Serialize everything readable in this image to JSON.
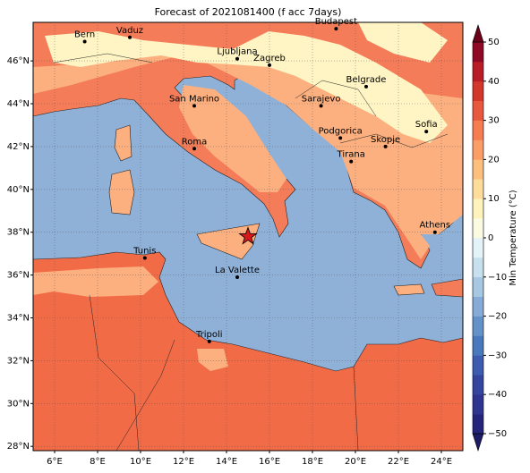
{
  "title": "Forecast of 2021081400 (f acc 7days)",
  "map": {
    "lonlim": [
      5,
      25
    ],
    "latlim": [
      27.8,
      47.8
    ],
    "grid": true,
    "lonticks": [
      {
        "value": 6,
        "label": "6°E"
      },
      {
        "value": 8,
        "label": "8°E"
      },
      {
        "value": 10,
        "label": "10°E"
      },
      {
        "value": 12,
        "label": "12°E"
      },
      {
        "value": 14,
        "label": "14°E"
      },
      {
        "value": 16,
        "label": "16°E"
      },
      {
        "value": 18,
        "label": "18°E"
      },
      {
        "value": 20,
        "label": "20°E"
      },
      {
        "value": 22,
        "label": "22°E"
      },
      {
        "value": 24,
        "label": "24°E"
      }
    ],
    "latticks": [
      {
        "value": 28,
        "label": "28°N"
      },
      {
        "value": 30,
        "label": "30°N"
      },
      {
        "value": 32,
        "label": "32°N"
      },
      {
        "value": 34,
        "label": "34°N"
      },
      {
        "value": 36,
        "label": "36°N"
      },
      {
        "value": 38,
        "label": "38°N"
      },
      {
        "value": 40,
        "label": "40°N"
      },
      {
        "value": 42,
        "label": "42°N"
      },
      {
        "value": 44,
        "label": "44°N"
      },
      {
        "value": 46,
        "label": "46°N"
      }
    ],
    "cities": [
      {
        "name": "Bern",
        "lon": 7.4,
        "lat": 46.9
      },
      {
        "name": "Vaduz",
        "lon": 9.5,
        "lat": 47.1
      },
      {
        "name": "Budapest",
        "lon": 19.1,
        "lat": 47.5
      },
      {
        "name": "Ljubljana",
        "lon": 14.5,
        "lat": 46.1
      },
      {
        "name": "Zagreb",
        "lon": 16.0,
        "lat": 45.8
      },
      {
        "name": "Belgrade",
        "lon": 20.5,
        "lat": 44.8
      },
      {
        "name": "Sarajevo",
        "lon": 18.4,
        "lat": 43.9
      },
      {
        "name": "San Marino",
        "lon": 12.5,
        "lat": 43.9
      },
      {
        "name": "Sofia",
        "lon": 23.3,
        "lat": 42.7
      },
      {
        "name": "Podgorica",
        "lon": 19.3,
        "lat": 42.4
      },
      {
        "name": "Skopje",
        "lon": 21.4,
        "lat": 42.0
      },
      {
        "name": "Roma",
        "lon": 12.5,
        "lat": 41.9
      },
      {
        "name": "Tirana",
        "lon": 19.8,
        "lat": 41.3
      },
      {
        "name": "Athens",
        "lon": 23.7,
        "lat": 38.0
      },
      {
        "name": "Tunis",
        "lon": 10.2,
        "lat": 36.8
      },
      {
        "name": "La Valette",
        "lon": 14.5,
        "lat": 35.9
      },
      {
        "name": "Tripoli",
        "lon": 13.2,
        "lat": 32.9
      }
    ],
    "star": {
      "lon": 15.0,
      "lat": 37.8,
      "color": "#d7191c"
    }
  },
  "colorbar": {
    "label": "Min Temperature (°C)",
    "lim": [
      -50,
      50
    ],
    "ticks": [
      {
        "value": -50,
        "label": "−50"
      },
      {
        "value": -40,
        "label": "−40"
      },
      {
        "value": -30,
        "label": "−30"
      },
      {
        "value": -20,
        "label": "−20"
      },
      {
        "value": -10,
        "label": "−10"
      },
      0,
      10,
      20,
      30,
      40,
      50
    ],
    "colors": [
      "#24247a",
      "#2d3590",
      "#34459f",
      "#3d5caf",
      "#4a78bd",
      "#6591c9",
      "#85abd6",
      "#a7c8e3",
      "#c6e0ee",
      "#e4f3f7",
      "#fbfbe2",
      "#fff2bd",
      "#fedc9a",
      "#fdbf7e",
      "#fb9d67",
      "#f67c52",
      "#e8583e",
      "#d3362b",
      "#b81c26",
      "#8f0826"
    ],
    "under_color": "#1c1c66",
    "over_color": "#6b0018"
  }
}
